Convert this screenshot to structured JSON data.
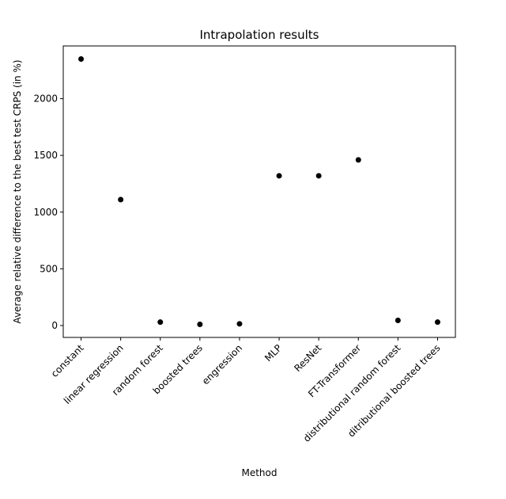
{
  "chart_data": {
    "type": "scatter",
    "title": "Intrapolation results",
    "xlabel": "Method",
    "ylabel": "Average relative difference to the best test CRPS (in %)",
    "categories": [
      "constant",
      "linear regression",
      "random forest",
      "boosted trees",
      "engression",
      "MLP",
      "ResNet",
      "FT-Transformer",
      "distributional random forest",
      "ditributional boosted trees"
    ],
    "values": [
      2350,
      1110,
      30,
      10,
      15,
      1320,
      1320,
      1460,
      45,
      30
    ],
    "ylim": [
      -105,
      2465
    ],
    "yticks": [
      0,
      500,
      1000,
      1500,
      2000
    ],
    "grid": false,
    "marker_color": "#000000"
  }
}
